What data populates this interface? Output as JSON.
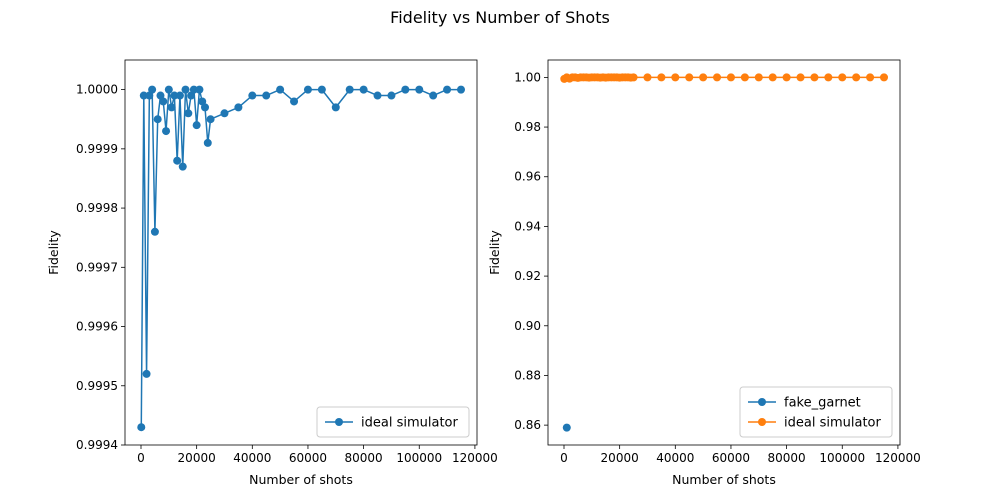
{
  "figure": {
    "title": "Fidelity vs Number of Shots"
  },
  "colors": {
    "blue": "#1f77b4",
    "orange": "#ff7f0e"
  },
  "chart_data": [
    {
      "type": "line",
      "xlabel": "Number of shots",
      "ylabel": "Fidelity",
      "xlim": [
        -5750,
        120750
      ],
      "ylim": [
        0.9994,
        1.00005
      ],
      "xticks": [
        0,
        20000,
        40000,
        60000,
        80000,
        100000,
        120000
      ],
      "xtick_labels": [
        "0",
        "20000",
        "40000",
        "60000",
        "80000",
        "100000",
        "120000"
      ],
      "yticks": [
        0.9994,
        0.9995,
        0.9996,
        0.9997,
        0.9998,
        0.9999,
        1.0
      ],
      "ytick_labels": [
        "0.9994",
        "0.9995",
        "0.9996",
        "0.9997",
        "0.9998",
        "0.9999",
        "1.0000"
      ],
      "grid": false,
      "legend_position": "lower-right",
      "series": [
        {
          "name": "ideal simulator",
          "color": "#1f77b4",
          "marker": "circle",
          "points": [
            [
              100,
              0.99943
            ],
            [
              1000,
              0.99999
            ],
            [
              2000,
              0.99952
            ],
            [
              3000,
              0.99999
            ],
            [
              4000,
              1.0
            ],
            [
              5000,
              0.99976
            ],
            [
              6000,
              0.99995
            ],
            [
              7000,
              0.99999
            ],
            [
              8000,
              0.99998
            ],
            [
              9000,
              0.99993
            ],
            [
              10000,
              1.0
            ],
            [
              11000,
              0.99997
            ],
            [
              12000,
              0.99999
            ],
            [
              13000,
              0.99988
            ],
            [
              14000,
              0.99999
            ],
            [
              15000,
              0.99987
            ],
            [
              16000,
              1.0
            ],
            [
              17000,
              0.99996
            ],
            [
              18000,
              0.99999
            ],
            [
              19000,
              1.0
            ],
            [
              20000,
              0.99994
            ],
            [
              21000,
              1.0
            ],
            [
              22000,
              0.99998
            ],
            [
              23000,
              0.99997
            ],
            [
              24000,
              0.99991
            ],
            [
              25000,
              0.99995
            ],
            [
              30000,
              0.99996
            ],
            [
              35000,
              0.99997
            ],
            [
              40000,
              0.99999
            ],
            [
              45000,
              0.99999
            ],
            [
              50000,
              1.0
            ],
            [
              55000,
              0.99998
            ],
            [
              60000,
              1.0
            ],
            [
              65000,
              1.0
            ],
            [
              70000,
              0.99997
            ],
            [
              75000,
              1.0
            ],
            [
              80000,
              1.0
            ],
            [
              85000,
              0.99999
            ],
            [
              90000,
              0.99999
            ],
            [
              95000,
              1.0
            ],
            [
              100000,
              1.0
            ],
            [
              105000,
              0.99999
            ],
            [
              110000,
              1.0
            ],
            [
              115000,
              1.0
            ]
          ]
        }
      ]
    },
    {
      "type": "line",
      "xlabel": "Number of shots",
      "ylabel": "Fidelity",
      "xlim": [
        -5750,
        120750
      ],
      "ylim": [
        0.852,
        1.007
      ],
      "xticks": [
        0,
        20000,
        40000,
        60000,
        80000,
        100000,
        120000
      ],
      "xtick_labels": [
        "0",
        "20000",
        "40000",
        "60000",
        "80000",
        "100000",
        "120000"
      ],
      "yticks": [
        0.86,
        0.88,
        0.9,
        0.92,
        0.94,
        0.96,
        0.98,
        1.0
      ],
      "ytick_labels": [
        "0.86",
        "0.88",
        "0.90",
        "0.92",
        "0.94",
        "0.96",
        "0.98",
        "1.00"
      ],
      "grid": false,
      "legend_position": "lower-right",
      "series": [
        {
          "name": "fake_garnet",
          "color": "#1f77b4",
          "marker": "circle",
          "points": [
            [
              1000,
              0.859
            ]
          ]
        },
        {
          "name": "ideal simulator",
          "color": "#ff7f0e",
          "marker": "circle",
          "points": [
            [
              100,
              0.9994
            ],
            [
              1000,
              1.0
            ],
            [
              2000,
              0.9995
            ],
            [
              3000,
              1.0
            ],
            [
              4000,
              1.0
            ],
            [
              5000,
              0.9998
            ],
            [
              6000,
              1.0
            ],
            [
              7000,
              1.0
            ],
            [
              8000,
              1.0
            ],
            [
              9000,
              0.9999
            ],
            [
              10000,
              1.0
            ],
            [
              11000,
              1.0
            ],
            [
              12000,
              1.0
            ],
            [
              13000,
              0.9999
            ],
            [
              14000,
              1.0
            ],
            [
              15000,
              0.9999
            ],
            [
              16000,
              1.0
            ],
            [
              17000,
              1.0
            ],
            [
              18000,
              1.0
            ],
            [
              19000,
              1.0
            ],
            [
              20000,
              0.9999
            ],
            [
              21000,
              1.0
            ],
            [
              22000,
              1.0
            ],
            [
              23000,
              1.0
            ],
            [
              24000,
              0.9999
            ],
            [
              25000,
              1.0
            ],
            [
              30000,
              1.0
            ],
            [
              35000,
              1.0
            ],
            [
              40000,
              1.0
            ],
            [
              45000,
              1.0
            ],
            [
              50000,
              1.0
            ],
            [
              55000,
              1.0
            ],
            [
              60000,
              1.0
            ],
            [
              65000,
              1.0
            ],
            [
              70000,
              1.0
            ],
            [
              75000,
              1.0
            ],
            [
              80000,
              1.0
            ],
            [
              85000,
              1.0
            ],
            [
              90000,
              1.0
            ],
            [
              95000,
              1.0
            ],
            [
              100000,
              1.0
            ],
            [
              105000,
              1.0
            ],
            [
              110000,
              1.0
            ],
            [
              115000,
              1.0
            ]
          ]
        }
      ]
    }
  ]
}
